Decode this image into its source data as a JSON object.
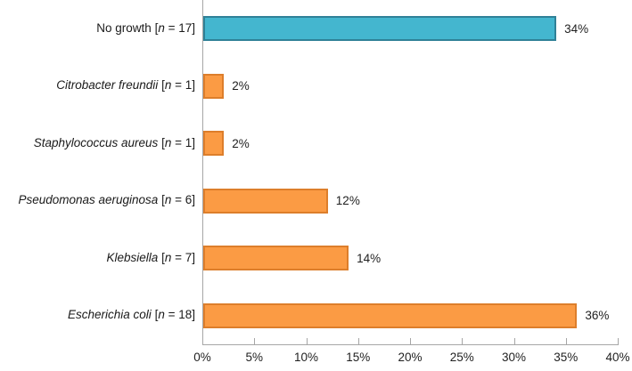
{
  "chart_data": {
    "type": "bar",
    "orientation": "horizontal",
    "title": "",
    "xlabel": "",
    "ylabel": "",
    "xlim": [
      0,
      40
    ],
    "grid": false,
    "legend": "none",
    "x_ticks": [
      "0%",
      "5%",
      "10%",
      "15%",
      "20%",
      "25%",
      "30%",
      "35%",
      "40%"
    ],
    "x_tick_values": [
      0,
      5,
      10,
      15,
      20,
      25,
      30,
      35,
      40
    ],
    "n_notation": {
      "open": "[",
      "symbol": "n",
      "equals": " = ",
      "close": "]"
    },
    "bars": [
      {
        "category": "No growth",
        "category_italic": false,
        "n": "17",
        "value": 34,
        "data_label": "34%",
        "fill": "#44b6cf",
        "border": "#2f8197"
      },
      {
        "category": "Citrobacter freundii",
        "category_italic": true,
        "n": "1",
        "value": 2,
        "data_label": "2%",
        "fill": "#fb9b44",
        "border": "#dd7e2b"
      },
      {
        "category": "Staphylococcus aureus",
        "category_italic": true,
        "n": "1",
        "value": 2,
        "data_label": "2%",
        "fill": "#fb9b44",
        "border": "#dd7e2b"
      },
      {
        "category": "Pseudomonas aeruginosa",
        "category_italic": true,
        "n": "6",
        "value": 12,
        "data_label": "12%",
        "fill": "#fb9b44",
        "border": "#dd7e2b"
      },
      {
        "category": "Klebsiella",
        "category_italic": true,
        "n": "7",
        "value": 14,
        "data_label": "14%",
        "fill": "#fb9b44",
        "border": "#dd7e2b"
      },
      {
        "category": "Escherichia coli",
        "category_italic": true,
        "n": "18",
        "value": 36,
        "data_label": "36%",
        "fill": "#fb9b44",
        "border": "#dd7e2b"
      }
    ],
    "colors": {
      "axis": "#a6a6a6",
      "text": "#1f1f1f",
      "background": "#ffffff",
      "primary_bar": "#fb9b44",
      "primary_bar_border": "#dd7e2b",
      "highlight_bar": "#44b6cf",
      "highlight_bar_border": "#2f8197"
    }
  }
}
